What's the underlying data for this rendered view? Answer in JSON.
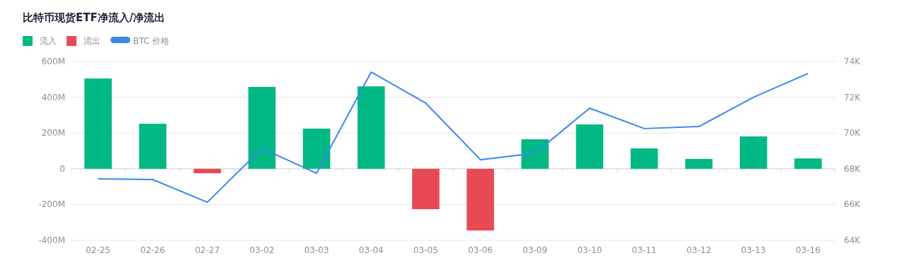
{
  "chart_data": {
    "type": "bar",
    "title": "比特币现货ETF净流入/净流出",
    "categories": [
      "02-25",
      "02-26",
      "02-27",
      "03-02",
      "03-03",
      "03-04",
      "03-05",
      "03-06",
      "03-09",
      "03-10",
      "03-11",
      "03-12",
      "03-13",
      "03-16"
    ],
    "series": [
      {
        "name": "流入",
        "color": "#00b884",
        "values": [
          505,
          252,
          null,
          458,
          225,
          461,
          null,
          null,
          165,
          248,
          114,
          55,
          181,
          58
        ]
      },
      {
        "name": "流出",
        "color": "#e84a55",
        "values": [
          null,
          null,
          -25,
          null,
          null,
          null,
          -226,
          -345,
          null,
          null,
          null,
          null,
          null,
          null
        ]
      },
      {
        "name": "BTC 价格",
        "type": "line",
        "axis": "y2",
        "color": "#3b86f0",
        "values": [
          67.44,
          67.4,
          66.13,
          69.14,
          67.75,
          73.41,
          71.67,
          68.51,
          68.87,
          71.39,
          70.25,
          70.36,
          72.0,
          73.33
        ]
      }
    ],
    "ylim": [
      -400,
      600
    ],
    "yticks": [
      {
        "value": -400,
        "label": "-400M"
      },
      {
        "value": -200,
        "label": "-200M"
      },
      0,
      {
        "value": 200,
        "label": "200M"
      },
      {
        "value": 400,
        "label": "400M"
      },
      {
        "value": 600,
        "label": "600M"
      }
    ],
    "y2lim": [
      64,
      74
    ],
    "y2ticks": [
      {
        "value": 64,
        "label": "64K"
      },
      {
        "value": 66,
        "label": "66K"
      },
      {
        "value": 68,
        "label": "68K"
      },
      {
        "value": 70,
        "label": "70K"
      },
      {
        "value": 72,
        "label": "72K"
      },
      {
        "value": 74,
        "label": "74K"
      }
    ],
    "grid": "y",
    "legend": "top left",
    "marker": "none",
    "line_style": "solid"
  }
}
